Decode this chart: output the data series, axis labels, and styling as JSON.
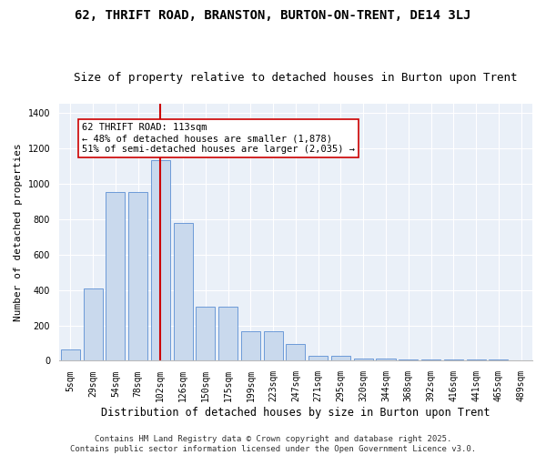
{
  "title": "62, THRIFT ROAD, BRANSTON, BURTON-ON-TRENT, DE14 3LJ",
  "subtitle": "Size of property relative to detached houses in Burton upon Trent",
  "xlabel": "Distribution of detached houses by size in Burton upon Trent",
  "ylabel": "Number of detached properties",
  "categories": [
    "5sqm",
    "29sqm",
    "54sqm",
    "78sqm",
    "102sqm",
    "126sqm",
    "150sqm",
    "175sqm",
    "199sqm",
    "223sqm",
    "247sqm",
    "271sqm",
    "295sqm",
    "320sqm",
    "344sqm",
    "368sqm",
    "392sqm",
    "416sqm",
    "441sqm",
    "465sqm",
    "489sqm"
  ],
  "values": [
    65,
    410,
    950,
    950,
    1130,
    780,
    305,
    305,
    165,
    165,
    95,
    30,
    30,
    15,
    15,
    10,
    10,
    10,
    10,
    10,
    0
  ],
  "bar_color": "#c9d9ed",
  "bar_edge_color": "#5b8fd4",
  "vline_x_index": 4,
  "vline_color": "#cc0000",
  "annotation_text": "62 THRIFT ROAD: 113sqm\n← 48% of detached houses are smaller (1,878)\n51% of semi-detached houses are larger (2,035) →",
  "annotation_box_color": "#ffffff",
  "annotation_box_edge": "#cc0000",
  "ylim": [
    0,
    1450
  ],
  "yticks": [
    0,
    200,
    400,
    600,
    800,
    1000,
    1200,
    1400
  ],
  "bg_color": "#eaf0f8",
  "footer": "Contains HM Land Registry data © Crown copyright and database right 2025.\nContains public sector information licensed under the Open Government Licence v3.0.",
  "title_fontsize": 10,
  "subtitle_fontsize": 9,
  "xlabel_fontsize": 8.5,
  "ylabel_fontsize": 8,
  "tick_fontsize": 7,
  "footer_fontsize": 6.5,
  "annotation_fontsize": 7.5
}
